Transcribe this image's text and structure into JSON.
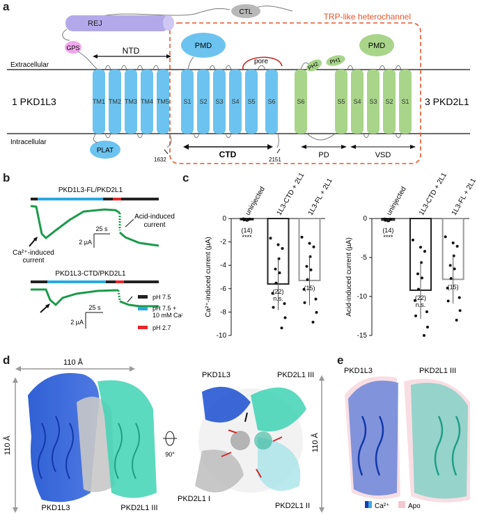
{
  "panels": {
    "a": "a",
    "b": "b",
    "c": "c",
    "d": "d",
    "e": "e"
  },
  "panel_a": {
    "rej": "REJ",
    "ctl": "CTL",
    "gps": "GPS",
    "plat": "PLAT",
    "ntd": "NTD",
    "extracellular": "Extracellular",
    "intracellular": "Intracellular",
    "pkd1l3": "1 PKD1L3",
    "pkd2l1": "3 PKD2L1",
    "trp_title": "TRP-like heterochannel",
    "pmd": "PMD",
    "pore": "pore",
    "tm_left": [
      "TM1",
      "TM2",
      "TM3",
      "TM4",
      "TM5"
    ],
    "s_left": [
      "S1",
      "S2",
      "S3",
      "S4",
      "S5",
      "S6"
    ],
    "s_right": [
      "S6",
      "S5",
      "S4",
      "S3",
      "S2",
      "S1"
    ],
    "ph1": "PH1",
    "ph2": "PH2",
    "ctd": "CTD",
    "pd": "PD",
    "vsd": "VSD",
    "res_1632": "1632",
    "res_2151": "2151"
  },
  "panel_b": {
    "title1": "PKD1L3-FL/PKD2L1",
    "title2": "PKD1L3-CTD/PKD2L1",
    "scale1_x": "25 s",
    "scale1_y": "2 µA",
    "scale2_x": "25 s",
    "scale2_y": "2 µA",
    "ca_label_1": "Ca²⁺-induced",
    "ca_label_2": "current",
    "acid_label_1": "Acid-induced",
    "acid_label_2": "current",
    "legend": [
      {
        "label": "pH 7.5",
        "color": "#222222"
      },
      {
        "label": "pH 7.5 +",
        "label2": "10 mM Ca²⁺",
        "color": "#29a9e0"
      },
      {
        "label": "pH 2.7",
        "color": "#e8262c"
      }
    ],
    "trace_color": "#1a9a4a"
  },
  "chart_data": [
    {
      "type": "bar",
      "title": "",
      "ylabel": "Ca²⁺-induced current (µA)",
      "categories": [
        "uninjected",
        "1L3-CTD + 2L1",
        "1L3-FL + 2L1"
      ],
      "values": [
        -0.1,
        -5.6,
        -5.3
      ],
      "n_labels": [
        "(14)",
        "(22)",
        "(15)"
      ],
      "significance": [
        "****",
        "n.s.",
        ""
      ],
      "ylim": [
        -10,
        0
      ],
      "yticks": [
        0,
        -2,
        -4,
        -6,
        -8,
        -10
      ]
    },
    {
      "type": "bar",
      "title": "",
      "ylabel": "Acid-induced current (µA)",
      "categories": [
        "uninjected",
        "1L3-CTD + 2L1",
        "1L3-FL + 2L1"
      ],
      "values": [
        -0.2,
        -9.2,
        -7.8
      ],
      "n_labels": [
        "(14)",
        "(22)",
        "(15)"
      ],
      "significance": [
        "****",
        "n.s.",
        ""
      ],
      "ylim": [
        -15,
        0
      ],
      "yticks": [
        0,
        -5,
        -10,
        -15
      ]
    }
  ],
  "panel_d": {
    "width_label": "110 Å",
    "height_label": "110 Å",
    "height_label2": "110 Å",
    "rotation": "90°",
    "labels_left": [
      "PKD1L3",
      "PKD2L1 III"
    ],
    "labels_right": [
      "PKD1L3",
      "PKD2L1 III",
      "PKD2L1 I",
      "PKD2L1 II"
    ]
  },
  "panel_e": {
    "labels": [
      "PKD1L3",
      "PKD2L1 III"
    ],
    "legend": [
      "Ca²⁺",
      "Apo"
    ]
  }
}
